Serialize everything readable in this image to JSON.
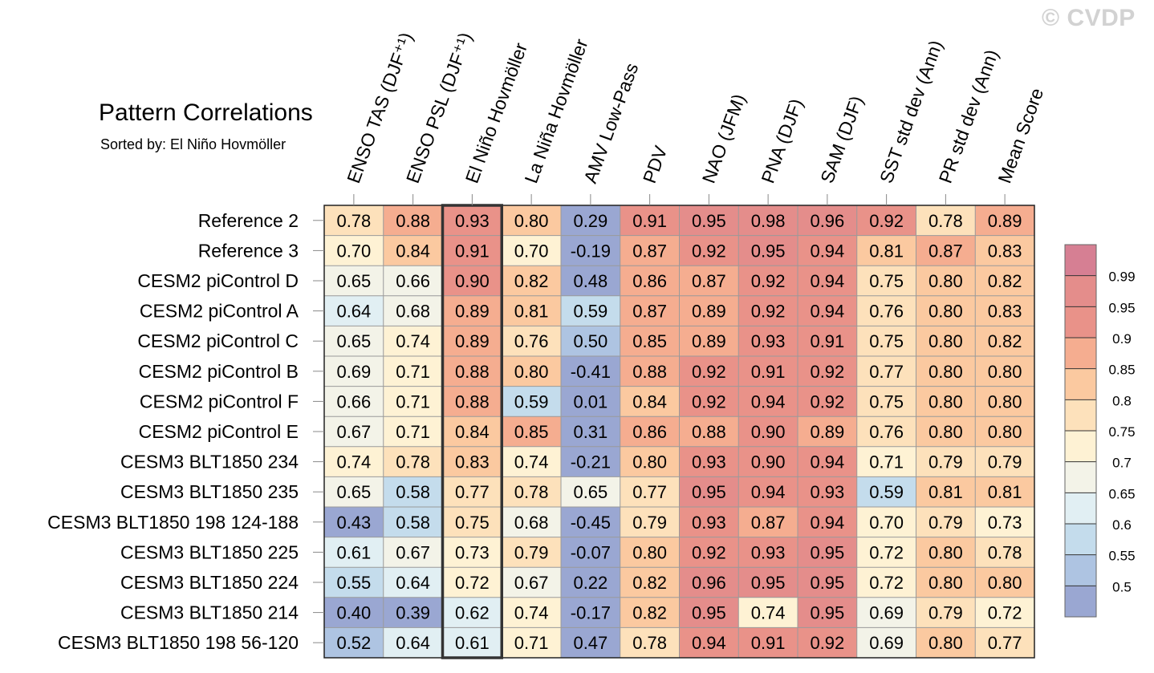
{
  "watermark": "© CVDP",
  "chart_data": {
    "type": "heatmap",
    "title": "Pattern Correlations",
    "subtitle": "Sorted by: El Niño Hovmöller",
    "columns": [
      "ENSO TAS (DJF⁺¹)",
      "ENSO PSL (DJF⁺¹)",
      "El Niño Hovmöller",
      "La Niña Hovmöller",
      "AMV Low-Pass",
      "PDV",
      "NAO (JFM)",
      "PNA (DJF)",
      "SAM (DJF)",
      "SST std dev (Ann)",
      "PR std dev (Ann)",
      "Mean Score"
    ],
    "highlighted_column": "El Niño Hovmöller",
    "rows": [
      {
        "name": "Reference 2",
        "values": [
          "0.78",
          "0.88",
          "0.93",
          "0.80",
          "0.29",
          "0.91",
          "0.95",
          "0.98",
          "0.96",
          "0.92",
          "0.78",
          "0.89"
        ]
      },
      {
        "name": "Reference 3",
        "values": [
          "0.70",
          "0.84",
          "0.91",
          "0.70",
          "-0.19",
          "0.87",
          "0.92",
          "0.95",
          "0.94",
          "0.81",
          "0.87",
          "0.83"
        ]
      },
      {
        "name": "CESM2 piControl D",
        "values": [
          "0.65",
          "0.66",
          "0.90",
          "0.82",
          "0.48",
          "0.86",
          "0.87",
          "0.92",
          "0.94",
          "0.75",
          "0.80",
          "0.82"
        ]
      },
      {
        "name": "CESM2 piControl A",
        "values": [
          "0.64",
          "0.68",
          "0.89",
          "0.81",
          "0.59",
          "0.87",
          "0.89",
          "0.92",
          "0.94",
          "0.76",
          "0.80",
          "0.83"
        ]
      },
      {
        "name": "CESM2 piControl C",
        "values": [
          "0.65",
          "0.74",
          "0.89",
          "0.76",
          "0.50",
          "0.85",
          "0.89",
          "0.93",
          "0.91",
          "0.75",
          "0.80",
          "0.82"
        ]
      },
      {
        "name": "CESM2 piControl B",
        "values": [
          "0.69",
          "0.71",
          "0.88",
          "0.80",
          "-0.41",
          "0.88",
          "0.92",
          "0.91",
          "0.92",
          "0.77",
          "0.80",
          "0.80"
        ]
      },
      {
        "name": "CESM2 piControl F",
        "values": [
          "0.66",
          "0.71",
          "0.88",
          "0.59",
          "0.01",
          "0.84",
          "0.92",
          "0.94",
          "0.92",
          "0.75",
          "0.80",
          "0.80"
        ]
      },
      {
        "name": "CESM2 piControl E",
        "values": [
          "0.67",
          "0.71",
          "0.84",
          "0.85",
          "0.31",
          "0.86",
          "0.88",
          "0.90",
          "0.89",
          "0.76",
          "0.80",
          "0.80"
        ]
      },
      {
        "name": "CESM3 BLT1850 234",
        "values": [
          "0.74",
          "0.78",
          "0.83",
          "0.74",
          "-0.21",
          "0.80",
          "0.93",
          "0.90",
          "0.94",
          "0.71",
          "0.79",
          "0.79"
        ]
      },
      {
        "name": "CESM3 BLT1850 235",
        "values": [
          "0.65",
          "0.58",
          "0.77",
          "0.78",
          "0.65",
          "0.77",
          "0.95",
          "0.94",
          "0.93",
          "0.59",
          "0.81",
          "0.81"
        ]
      },
      {
        "name": "CESM3 BLT1850 198 124-188",
        "values": [
          "0.43",
          "0.58",
          "0.75",
          "0.68",
          "-0.45",
          "0.79",
          "0.93",
          "0.87",
          "0.94",
          "0.70",
          "0.79",
          "0.73"
        ]
      },
      {
        "name": "CESM3 BLT1850 225",
        "values": [
          "0.61",
          "0.67",
          "0.73",
          "0.79",
          "-0.07",
          "0.80",
          "0.92",
          "0.93",
          "0.95",
          "0.72",
          "0.80",
          "0.78"
        ]
      },
      {
        "name": "CESM3 BLT1850 224",
        "values": [
          "0.55",
          "0.64",
          "0.72",
          "0.67",
          "0.22",
          "0.82",
          "0.96",
          "0.95",
          "0.95",
          "0.72",
          "0.80",
          "0.80"
        ]
      },
      {
        "name": "CESM3 BLT1850 214",
        "values": [
          "0.40",
          "0.39",
          "0.62",
          "0.74",
          "-0.17",
          "0.82",
          "0.95",
          "0.74",
          "0.95",
          "0.69",
          "0.79",
          "0.72"
        ]
      },
      {
        "name": "CESM3 BLT1850 198 56-120",
        "values": [
          "0.52",
          "0.64",
          "0.61",
          "0.71",
          "0.47",
          "0.78",
          "0.94",
          "0.91",
          "0.92",
          "0.69",
          "0.80",
          "0.77"
        ]
      }
    ],
    "colorbar": {
      "labels": [
        "0.99",
        "0.95",
        "0.9",
        "0.85",
        "0.8",
        "0.75",
        "0.7",
        "0.65",
        "0.6",
        "0.55",
        "0.5"
      ],
      "levels": [
        0.5,
        0.55,
        0.6,
        0.65,
        0.7,
        0.75,
        0.8,
        0.85,
        0.9,
        0.95,
        0.99
      ],
      "colors": [
        "#9aa7d2",
        "#aec4e2",
        "#c4dcec",
        "#e1eff3",
        "#f3f3e8",
        "#fef2d4",
        "#fde1bb",
        "#fbc9a0",
        "#f5ad90",
        "#e99289",
        "#e48d8b",
        "#d67f93"
      ]
    }
  }
}
